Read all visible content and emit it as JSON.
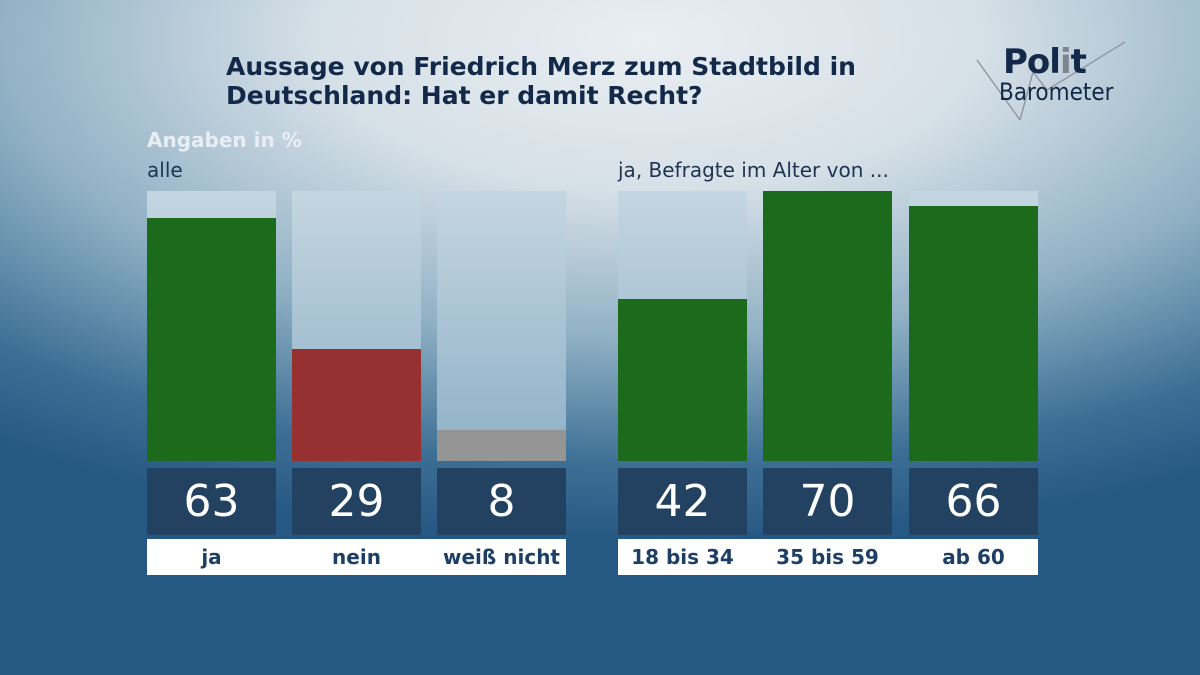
{
  "chart_data": [
    {
      "type": "bar",
      "title": "Aussage von Friedrich Merz zum Stadtbild in Deutschland: Hat er damit Recht?",
      "subtitle": "Angaben in %",
      "group_label": "alle",
      "categories": [
        "ja",
        "nein",
        "weiß nicht"
      ],
      "values": [
        63,
        29,
        8
      ],
      "colors": [
        "#1c6b1c",
        "#973131",
        "#959595"
      ],
      "ylim": [
        0,
        70
      ]
    },
    {
      "type": "bar",
      "group_label": "ja, Befragte im Alter von ...",
      "categories": [
        "18 bis 34",
        "35 bis 59",
        "ab 60"
      ],
      "values": [
        42,
        70,
        66
      ],
      "colors": [
        "#1c6b1c",
        "#1c6b1c",
        "#1c6b1c"
      ],
      "ylim": [
        0,
        70
      ]
    }
  ],
  "logo": {
    "text1": "Polit",
    "text2": "Barometer"
  }
}
